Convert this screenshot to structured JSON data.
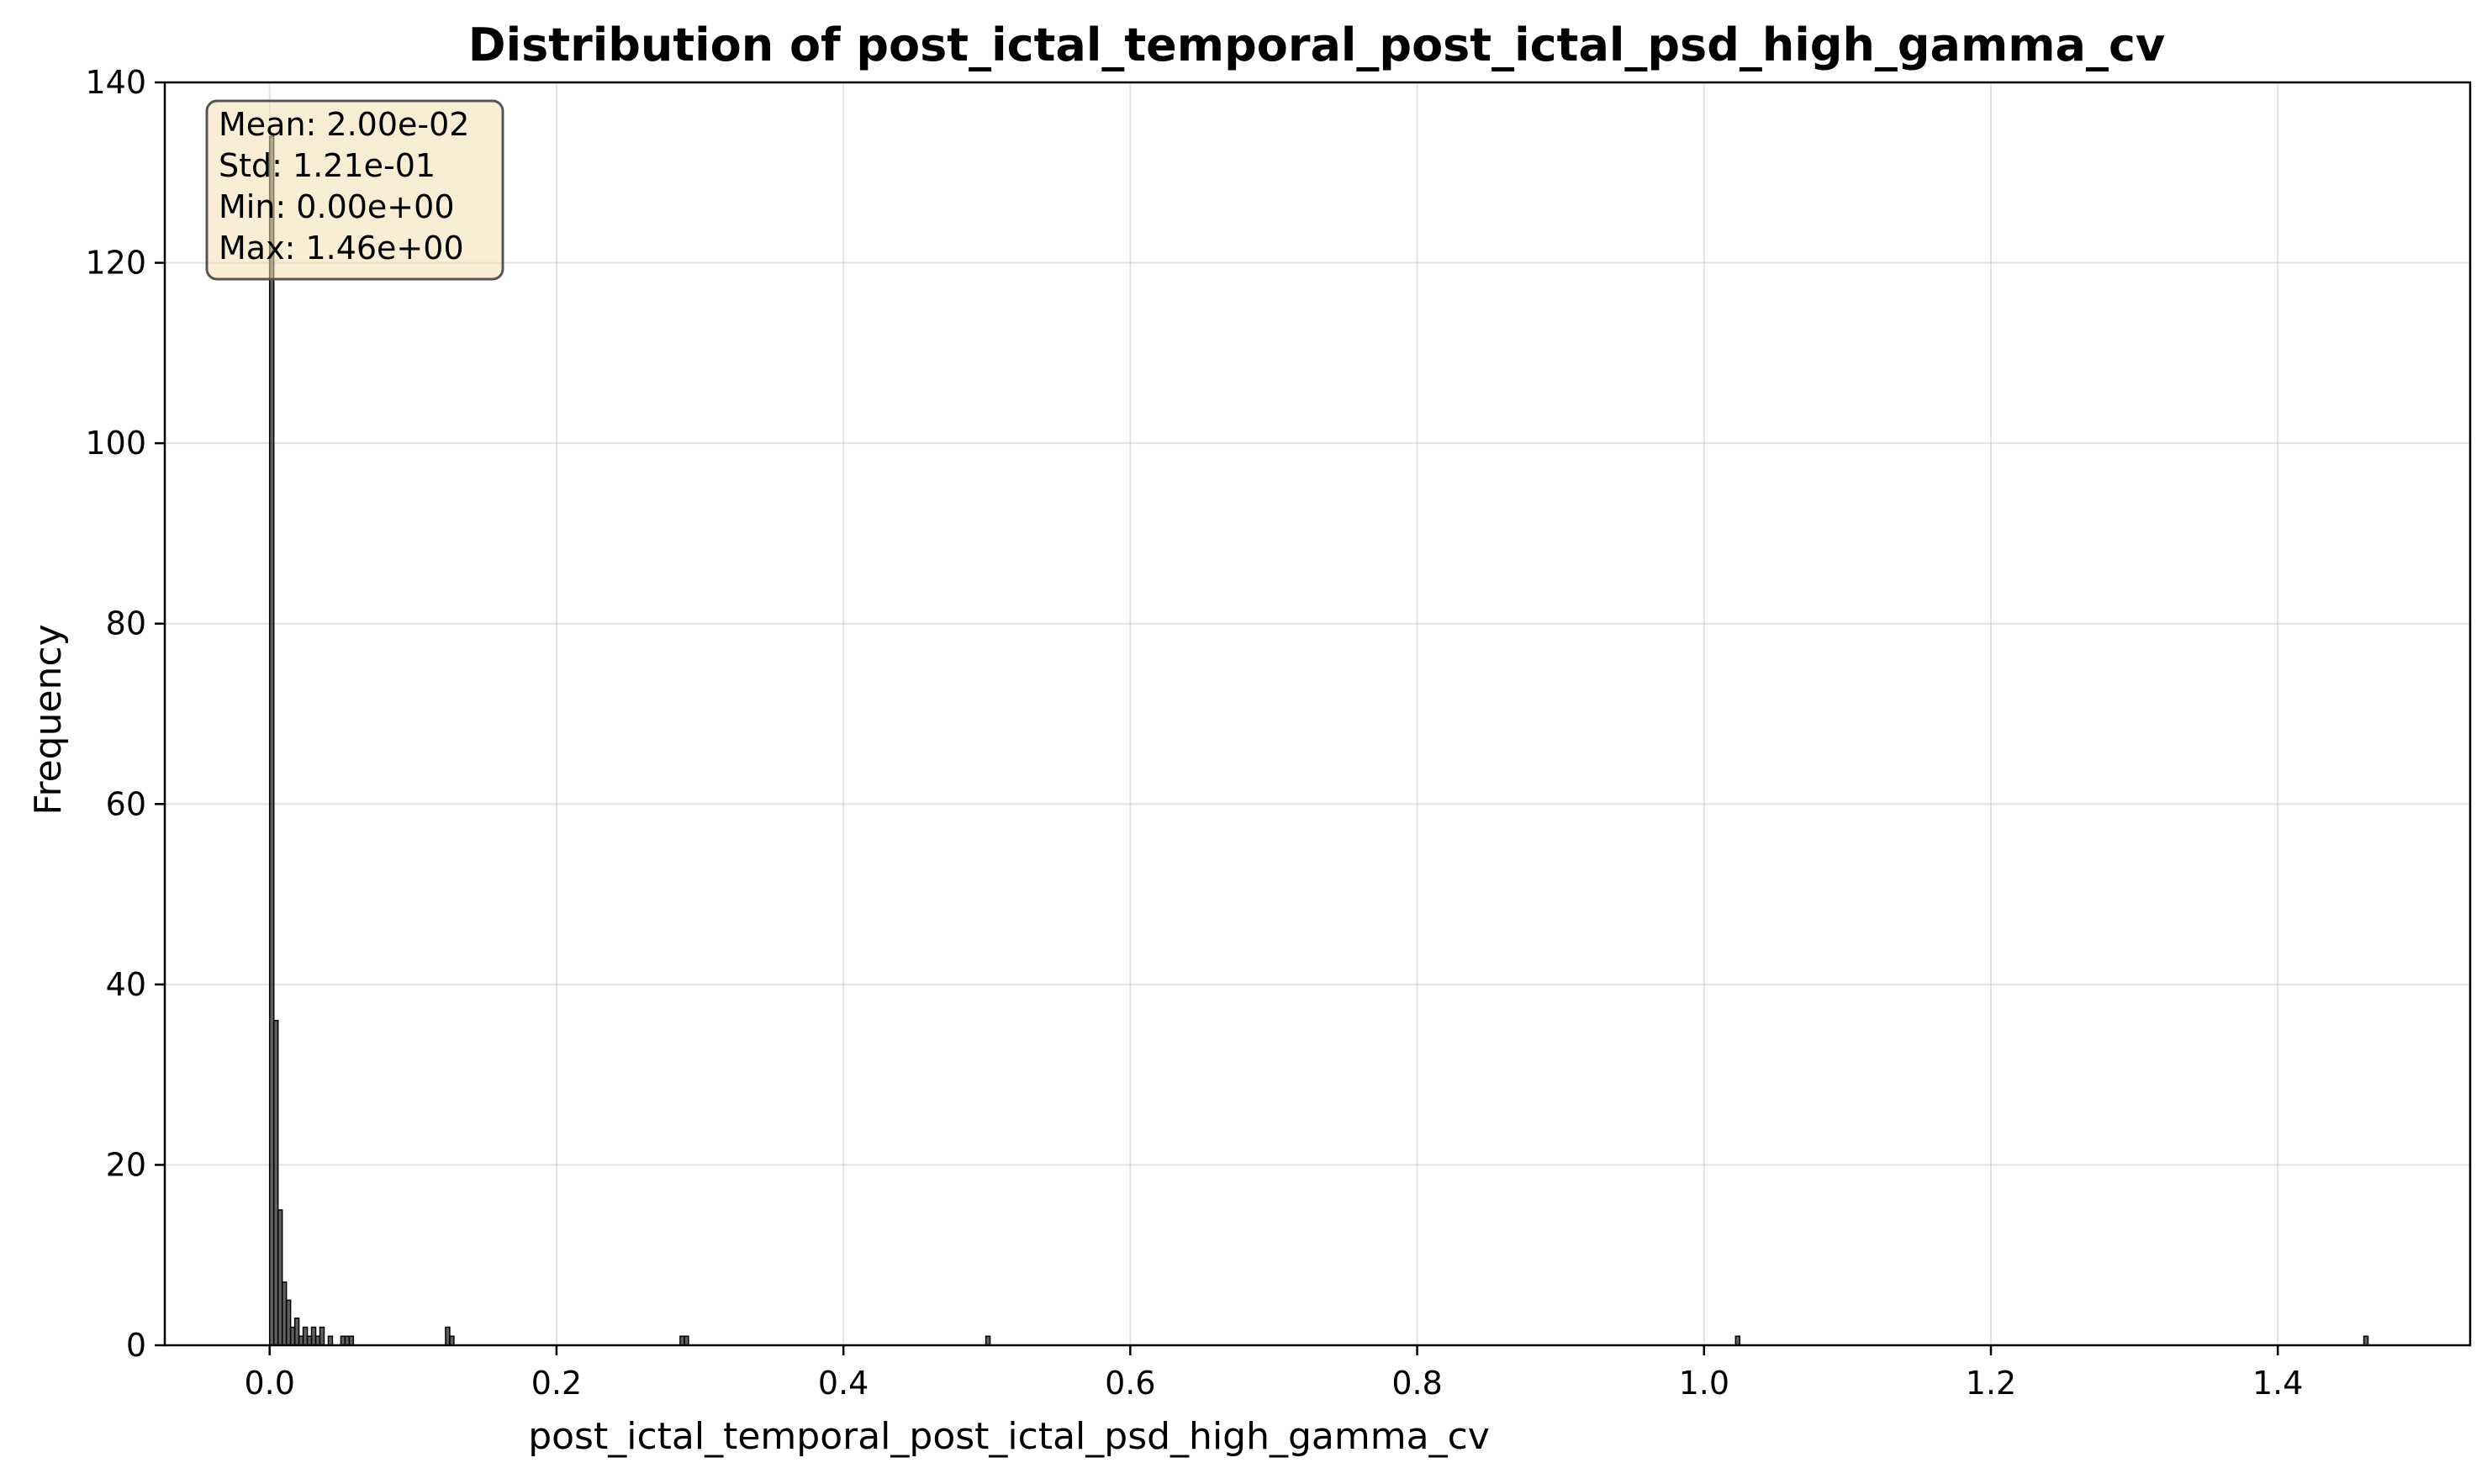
{
  "chart_data": {
    "type": "bar",
    "title": "Distribution of post_ictal_temporal_post_ictal_psd_high_gamma_cv",
    "xlabel": "post_ictal_temporal_post_ictal_psd_high_gamma_cv",
    "ylabel": "Frequency",
    "xlim": [
      -0.0731,
      1.5341
    ],
    "ylim": [
      0,
      140
    ],
    "xticks": [
      0.0,
      0.2,
      0.4,
      0.6,
      0.8,
      1.0,
      1.2,
      1.4
    ],
    "xtick_labels": [
      "0.0",
      "0.2",
      "0.4",
      "0.6",
      "0.8",
      "1.0",
      "1.2",
      "1.4"
    ],
    "yticks": [
      0,
      20,
      40,
      60,
      80,
      100,
      120,
      140
    ],
    "ytick_labels": [
      "0",
      "20",
      "40",
      "60",
      "80",
      "100",
      "120",
      "140"
    ],
    "grid": true,
    "bar_color": "#2b2b2b",
    "bin_width": 0.00292,
    "bins": [
      {
        "x": 0.0,
        "count": 134
      },
      {
        "x": 0.00292,
        "count": 36
      },
      {
        "x": 0.00584,
        "count": 15
      },
      {
        "x": 0.00876,
        "count": 7
      },
      {
        "x": 0.01168,
        "count": 5
      },
      {
        "x": 0.0146,
        "count": 2
      },
      {
        "x": 0.01752,
        "count": 3
      },
      {
        "x": 0.02044,
        "count": 1
      },
      {
        "x": 0.02336,
        "count": 2
      },
      {
        "x": 0.02628,
        "count": 1
      },
      {
        "x": 0.0292,
        "count": 2
      },
      {
        "x": 0.03212,
        "count": 1
      },
      {
        "x": 0.03504,
        "count": 2
      },
      {
        "x": 0.04088,
        "count": 1
      },
      {
        "x": 0.04964,
        "count": 1
      },
      {
        "x": 0.05256,
        "count": 1
      },
      {
        "x": 0.05548,
        "count": 1
      },
      {
        "x": 0.12264,
        "count": 2
      },
      {
        "x": 0.12556,
        "count": 1
      },
      {
        "x": 0.28616,
        "count": 1
      },
      {
        "x": 0.28908,
        "count": 1
      },
      {
        "x": 0.49932,
        "count": 1
      },
      {
        "x": 1.022,
        "count": 1
      },
      {
        "x": 1.46,
        "count": 1
      }
    ],
    "stats_box": {
      "mean": "Mean: 2.00e-02",
      "std": "Std: 1.21e-01",
      "min": "Min: 0.00e+00",
      "max": "Max: 1.46e+00",
      "background": "#f5deb3"
    }
  }
}
